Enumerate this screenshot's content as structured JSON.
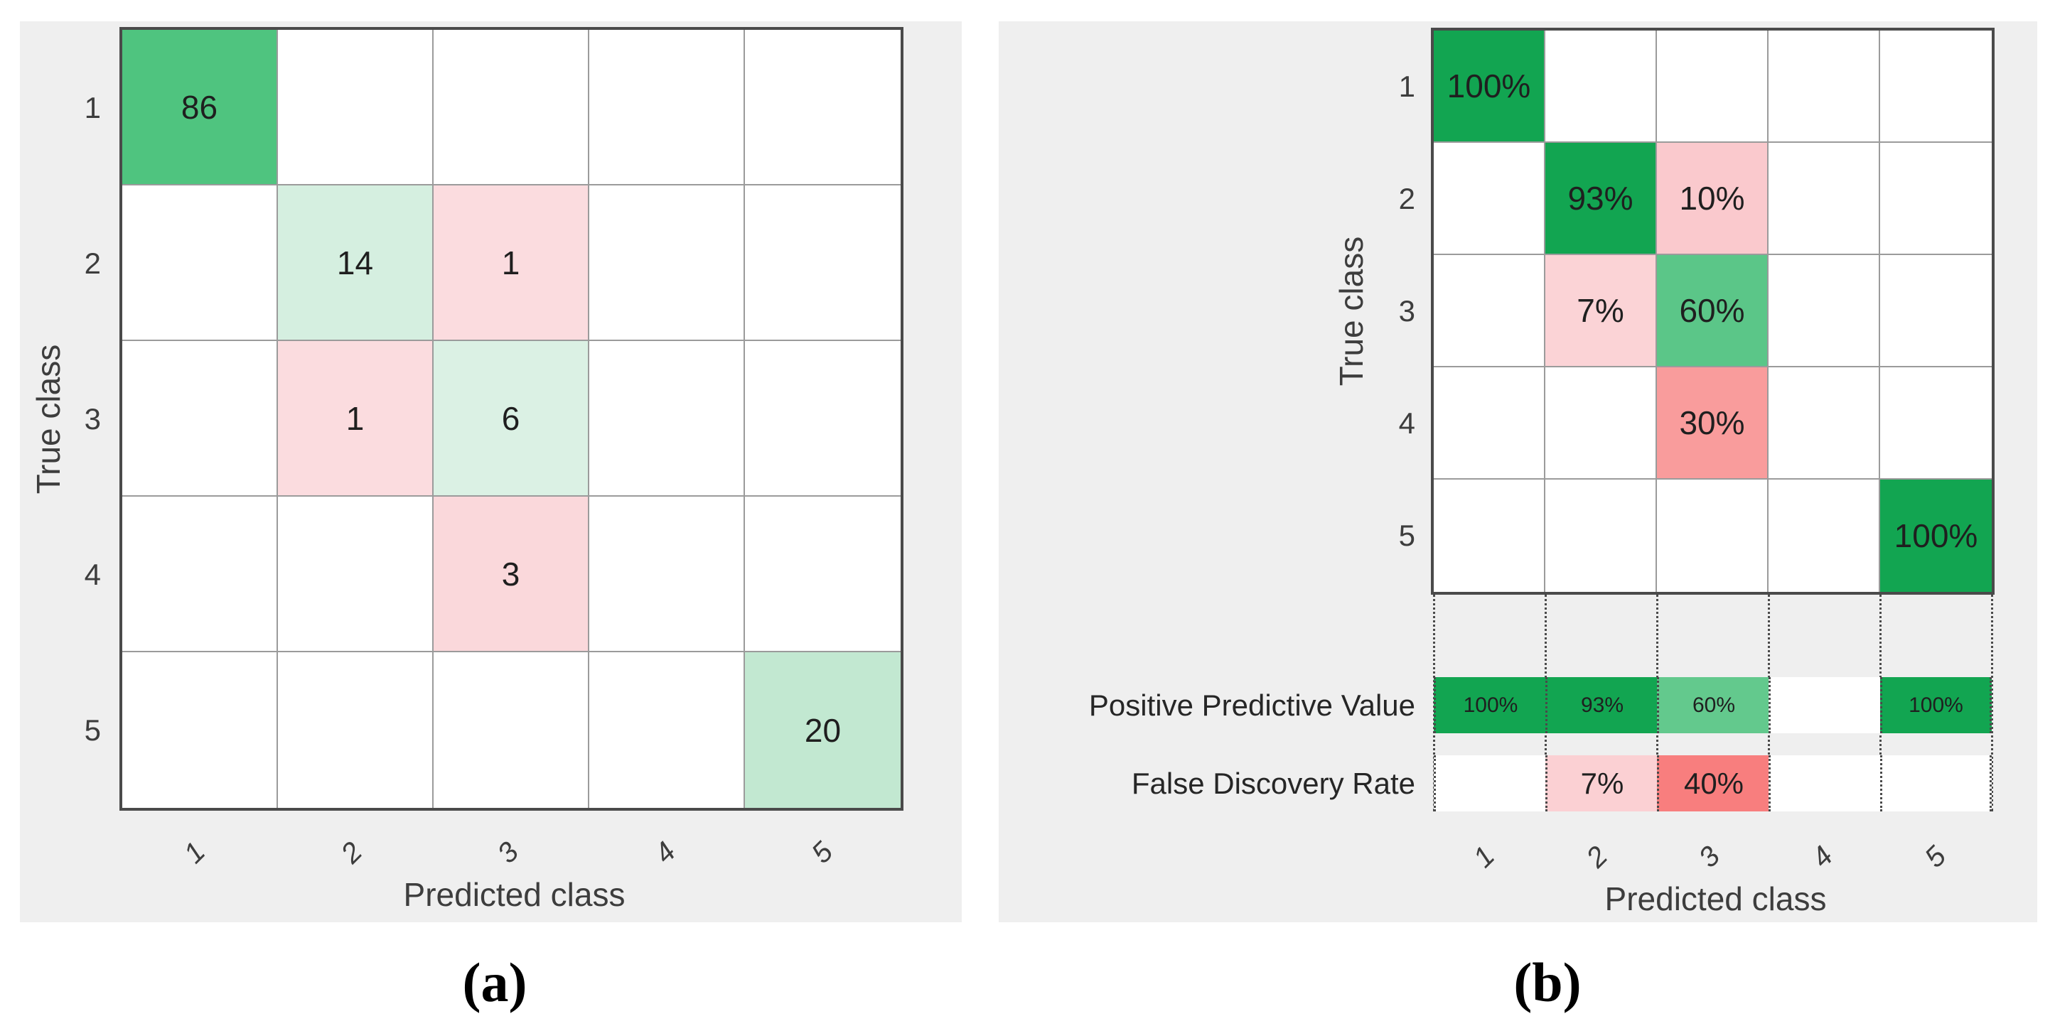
{
  "chart_data": [
    {
      "type": "heatmap",
      "panel": "a",
      "title": "(a)",
      "xlabel": "Predicted class",
      "ylabel": "True class",
      "x_categories": [
        "1",
        "2",
        "3",
        "4",
        "5"
      ],
      "y_categories": [
        "1",
        "2",
        "3",
        "4",
        "5"
      ],
      "values": [
        [
          86,
          null,
          null,
          null,
          null
        ],
        [
          null,
          14,
          1,
          null,
          null
        ],
        [
          null,
          1,
          6,
          null,
          null
        ],
        [
          null,
          null,
          3,
          null,
          null
        ],
        [
          null,
          null,
          null,
          null,
          20
        ]
      ]
    },
    {
      "type": "heatmap",
      "panel": "b",
      "title": "(b)",
      "xlabel": "Predicted class",
      "ylabel": "True class",
      "x_categories": [
        "1",
        "2",
        "3",
        "4",
        "5"
      ],
      "y_categories": [
        "1",
        "2",
        "3",
        "4",
        "5"
      ],
      "values_percent": [
        [
          100,
          null,
          null,
          null,
          null
        ],
        [
          null,
          93,
          10,
          null,
          null
        ],
        [
          null,
          7,
          60,
          null,
          null
        ],
        [
          null,
          null,
          30,
          null,
          null
        ],
        [
          null,
          null,
          null,
          null,
          100
        ]
      ],
      "summary": {
        "positive_predictive_value": [
          100,
          93,
          60,
          null,
          100
        ],
        "false_discovery_rate": [
          null,
          7,
          40,
          null,
          null
        ]
      }
    }
  ],
  "colors": {
    "panel_background": "#efefef",
    "grid_line": "#9b9b9b",
    "grid_border": "#4a4a4a",
    "strong_green": "#12a551",
    "medium_green": "#5bc688",
    "light_green": "#d5efe0",
    "strong_red": "#f87e7e",
    "light_red": "#fbdcdf",
    "text": "#262626"
  },
  "panels": [
    {
      "id": "a",
      "caption": "(a)",
      "xlabel": "Predicted class",
      "ylabel": "True class",
      "x_ticks": [
        "1",
        "2",
        "3",
        "4",
        "5"
      ],
      "y_ticks": [
        "1",
        "2",
        "3",
        "4",
        "5"
      ],
      "cells": [
        {
          "row": 1,
          "col": 1,
          "label": "86",
          "bg": "#4fc47f"
        },
        {
          "row": 2,
          "col": 2,
          "label": "14",
          "bg": "#d5efe0"
        },
        {
          "row": 2,
          "col": 3,
          "label": "1",
          "bg": "#fbdcdf"
        },
        {
          "row": 3,
          "col": 2,
          "label": "1",
          "bg": "#fbdcdf"
        },
        {
          "row": 3,
          "col": 3,
          "label": "6",
          "bg": "#dbf1e4"
        },
        {
          "row": 4,
          "col": 3,
          "label": "3",
          "bg": "#fad8db"
        },
        {
          "row": 5,
          "col": 5,
          "label": "20",
          "bg": "#c2e8d1"
        }
      ]
    },
    {
      "id": "b",
      "caption": "(b)",
      "xlabel": "Predicted class",
      "ylabel": "True class",
      "x_ticks": [
        "1",
        "2",
        "3",
        "4",
        "5"
      ],
      "y_ticks": [
        "1",
        "2",
        "3",
        "4",
        "5"
      ],
      "cells": [
        {
          "row": 1,
          "col": 1,
          "label": "100%",
          "bg": "#12a551"
        },
        {
          "row": 2,
          "col": 2,
          "label": "93%",
          "bg": "#12a551"
        },
        {
          "row": 2,
          "col": 3,
          "label": "10%",
          "bg": "#fac9cd"
        },
        {
          "row": 3,
          "col": 2,
          "label": "7%",
          "bg": "#fbd3d6"
        },
        {
          "row": 3,
          "col": 3,
          "label": "60%",
          "bg": "#5bc688"
        },
        {
          "row": 4,
          "col": 3,
          "label": "30%",
          "bg": "#f99c9c"
        },
        {
          "row": 5,
          "col": 5,
          "label": "100%",
          "bg": "#12a551"
        }
      ],
      "summaries": [
        {
          "label": "Positive Predictive Value",
          "cells": [
            {
              "col": 1,
              "label": "100%",
              "bg": "#12a551"
            },
            {
              "col": 2,
              "label": "93%",
              "bg": "#12a551"
            },
            {
              "col": 3,
              "label": "60%",
              "bg": "#63c98d"
            },
            {
              "col": 4,
              "label": "",
              "bg": "#ffffff"
            },
            {
              "col": 5,
              "label": "100%",
              "bg": "#12a551"
            }
          ]
        },
        {
          "label": "False Discovery Rate",
          "cells": [
            {
              "col": 1,
              "label": "",
              "bg": "#ffffff"
            },
            {
              "col": 2,
              "label": "7%",
              "bg": "#fbd0d3"
            },
            {
              "col": 3,
              "label": "40%",
              "bg": "#f87e7e"
            },
            {
              "col": 4,
              "label": "",
              "bg": "#ffffff"
            },
            {
              "col": 5,
              "label": "",
              "bg": "#ffffff"
            }
          ]
        }
      ]
    }
  ]
}
